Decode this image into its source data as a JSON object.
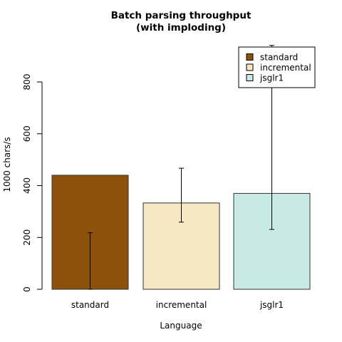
{
  "chart_data": {
    "type": "bar",
    "title": [
      "Batch parsing throughput",
      "(with imploding)"
    ],
    "xlabel": "Language",
    "ylabel": "1000 chars/s",
    "categories": [
      "standard",
      "incremental",
      "jsglr1"
    ],
    "values": [
      440,
      333,
      370
    ],
    "error_bars": [
      {
        "low": 0,
        "high": 218
      },
      {
        "low": 259,
        "high": 467
      },
      {
        "low": 231,
        "high": 941
      }
    ],
    "colors": [
      "#8c510a",
      "#f6e8c3",
      "#c7eae5"
    ],
    "ylim": [
      0,
      800
    ],
    "yticks": [
      0,
      200,
      400,
      600,
      800
    ],
    "legend": {
      "position": "top-right",
      "entries": [
        "standard",
        "incremental",
        "jsglr1"
      ]
    },
    "grid": false
  }
}
